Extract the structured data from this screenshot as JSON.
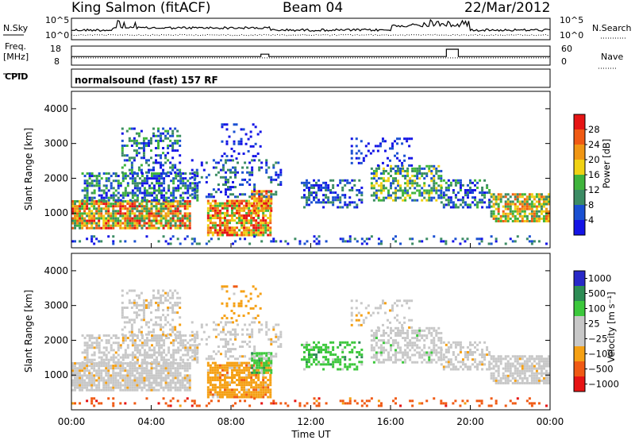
{
  "header": {
    "station": "King Salmon (fitACF)",
    "beam": "Beam 04",
    "date": "22/Mar/2012"
  },
  "noise_panel": {
    "left_label": "N.Sky",
    "right_label": "N.Search",
    "left_ticks": [
      "10^5",
      "10^0"
    ],
    "right_ticks": [
      "10^5",
      "10^0"
    ]
  },
  "freq_panel": {
    "left_label_1": "Freq.",
    "left_label_2": "[MHz]",
    "right_label": "Nave",
    "left_ticks": [
      "18",
      "8"
    ],
    "right_ticks": [
      "60",
      "0"
    ]
  },
  "cpid_panel": {
    "label": "CPID",
    "value": "normalsound (fast) 157 RF"
  },
  "colors": {
    "power": [
      "#1414e6",
      "#1a50d2",
      "#3c8c64",
      "#3fb43c",
      "#f0d214",
      "#f09614",
      "#f05a14",
      "#e61414"
    ],
    "velocity": [
      "#e61414",
      "#f05a14",
      "#f5a014",
      "#c8c8c8",
      "#c8c8c8",
      "#3cc83c",
      "#2d8c55",
      "#2828c8"
    ]
  },
  "chart_data": [
    {
      "type": "heatmap",
      "title": "",
      "xlabel": "Time UT",
      "ylabel": "Slant Range [km]",
      "xlim": [
        "00:00",
        "24:00"
      ],
      "ylim": [
        0,
        4500
      ],
      "x_ticks": [
        "00:00",
        "04:00",
        "08:00",
        "12:00",
        "16:00",
        "20:00",
        "00:00"
      ],
      "y_ticks": [
        "1000",
        "2000",
        "3000",
        "4000"
      ],
      "colorbar_label": "Power [dB]",
      "colorbar_ticks": [
        "4",
        "8",
        "12",
        "16",
        "20",
        "24",
        "28"
      ]
    },
    {
      "type": "heatmap",
      "title": "",
      "xlabel": "Time UT",
      "ylabel": "Slant Range [km]",
      "xlim": [
        "00:00",
        "24:00"
      ],
      "ylim": [
        0,
        4500
      ],
      "x_ticks": [
        "00:00",
        "04:00",
        "08:00",
        "12:00",
        "16:00",
        "20:00",
        "00:00"
      ],
      "y_ticks": [
        "1000",
        "2000",
        "3000",
        "4000"
      ],
      "colorbar_label": "Velocity [m s⁻¹]",
      "colorbar_ticks": [
        "1000",
        "500",
        "100",
        "25",
        "−25",
        "−100",
        "−500",
        "−1000"
      ]
    }
  ]
}
